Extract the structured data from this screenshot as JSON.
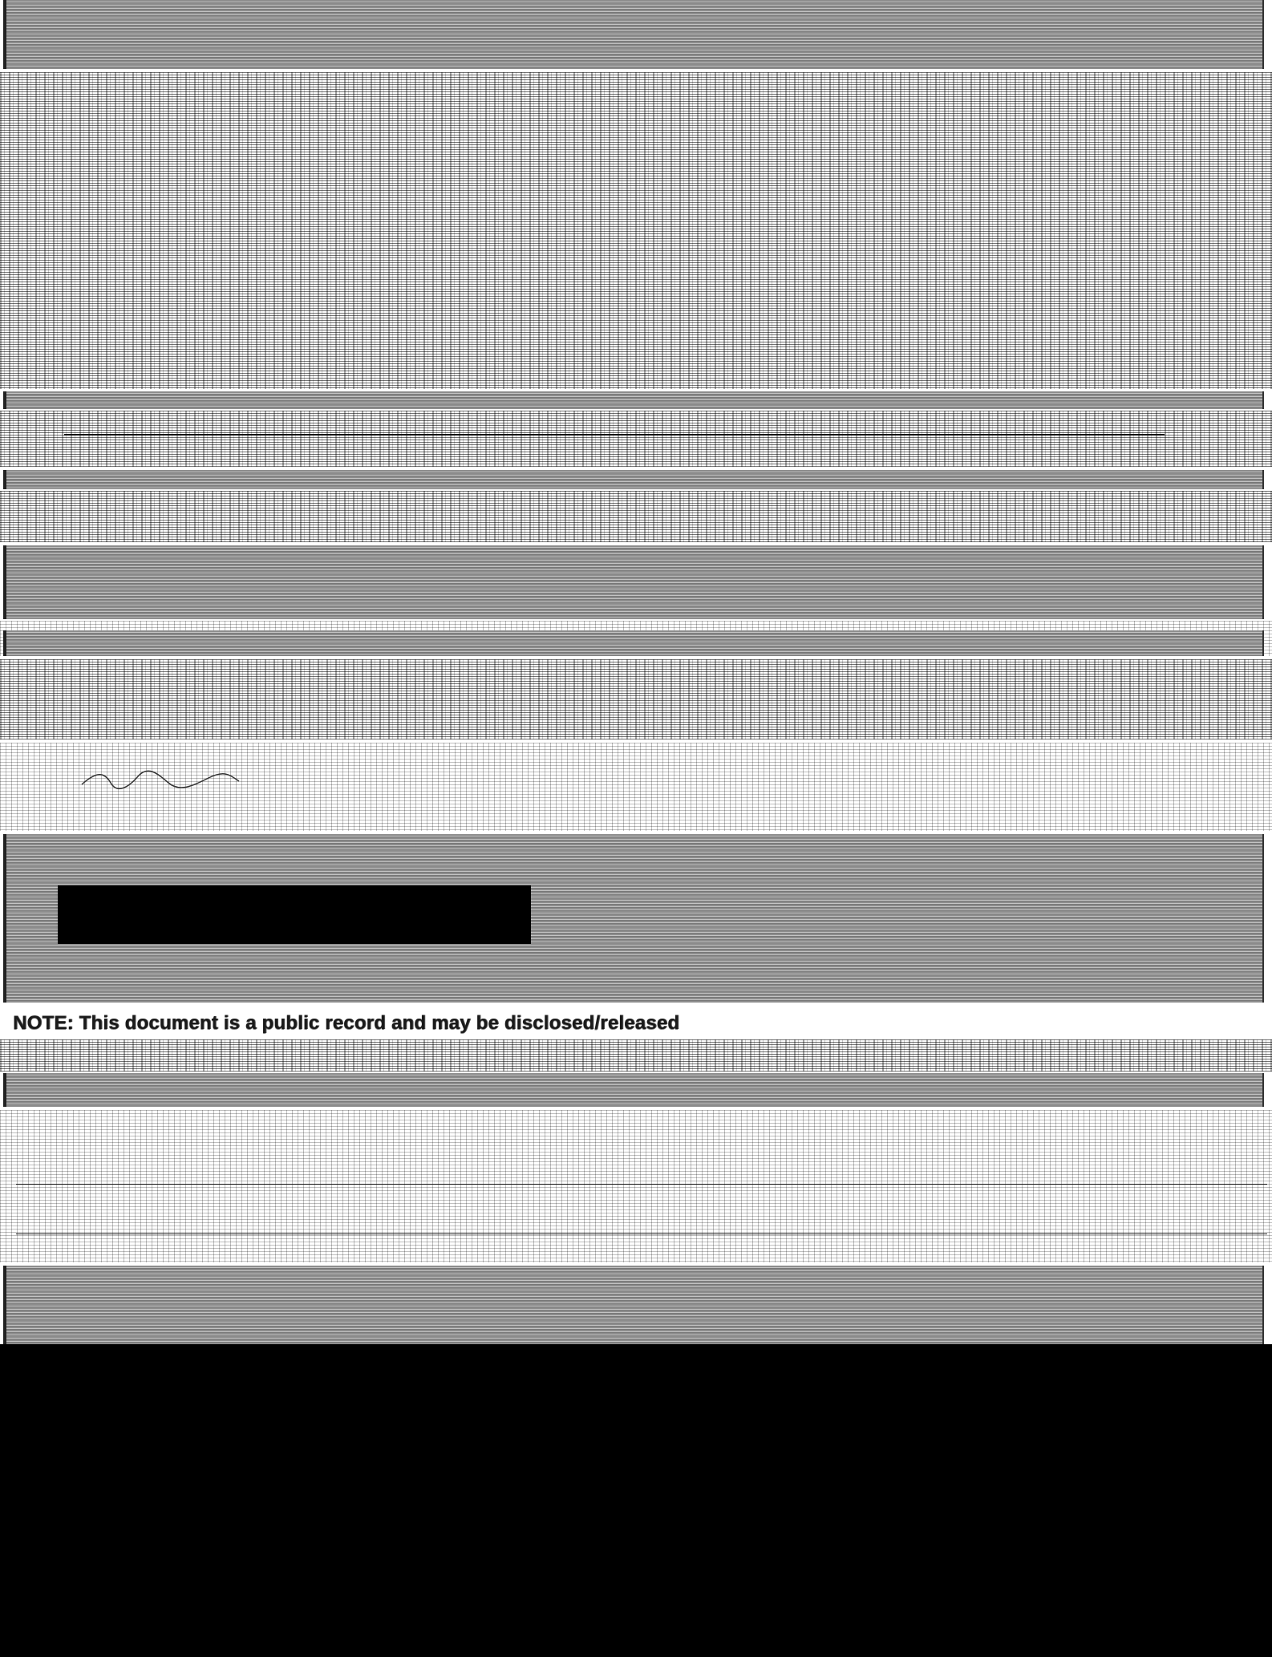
{
  "document": {
    "notice_text": "NOTE: This document is a public record and may be disclosed/released"
  },
  "colors": {
    "band": "#8d8d8d",
    "redaction": "#000000",
    "background": "#ffffff"
  }
}
